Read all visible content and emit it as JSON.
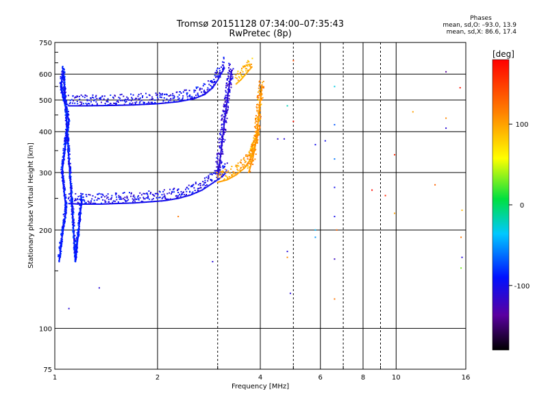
{
  "header": {
    "title": "Tromsø 20151128 07:34:00–07:35:43",
    "subtitle": "RwPretec (8p)"
  },
  "phases": {
    "title": "Phases",
    "line_o": "mean, sd,O: –93.0, 13.9",
    "line_x": "mean, sd,X:  86.6, 17.4"
  },
  "chart_data": {
    "type": "scatter",
    "xlabel": "Frequency [MHz]",
    "ylabel": "Stationary phase Virtual Height [km]",
    "xscale": "log",
    "yscale": "log",
    "xlim": [
      1,
      16
    ],
    "ylim": [
      75,
      750
    ],
    "x_ticks": [
      1,
      2,
      4,
      6,
      8,
      10,
      16
    ],
    "y_ticks": [
      75,
      100,
      200,
      300,
      400,
      500,
      600,
      750
    ],
    "x_minor_ticks": [
      3,
      5,
      7,
      9
    ],
    "y_minor_ticks": [
      150,
      250,
      350,
      450,
      550,
      650,
      700
    ],
    "colorbar": {
      "label": "[deg]",
      "range": [
        -180,
        180
      ],
      "ticks": [
        100,
        0,
        -100
      ]
    },
    "traces": {
      "o_f1_layer": {
        "phase": -100,
        "points": [
          [
            1.1,
            241
          ],
          [
            1.2,
            240
          ],
          [
            1.35,
            240
          ],
          [
            1.5,
            241
          ],
          [
            1.7,
            242
          ],
          [
            1.9,
            244
          ],
          [
            2.1,
            246
          ],
          [
            2.3,
            250
          ],
          [
            2.5,
            256
          ],
          [
            2.7,
            265
          ],
          [
            2.85,
            275
          ],
          [
            3.0,
            285
          ],
          [
            3.1,
            292
          ],
          [
            3.2,
            303
          ]
        ]
      },
      "o_f2_layer": {
        "phase": -100,
        "points": [
          [
            1.1,
            480
          ],
          [
            1.25,
            480
          ],
          [
            1.45,
            481
          ],
          [
            1.7,
            483
          ],
          [
            2.0,
            487
          ],
          [
            2.3,
            494
          ],
          [
            2.55,
            504
          ],
          [
            2.75,
            520
          ],
          [
            2.9,
            545
          ],
          [
            3.0,
            575
          ],
          [
            3.08,
            605
          ],
          [
            3.15,
            630
          ]
        ]
      },
      "o_f2_cusp": {
        "phase": -110,
        "points": [
          [
            3.0,
            290
          ],
          [
            3.05,
            330
          ],
          [
            3.1,
            380
          ],
          [
            3.15,
            440
          ],
          [
            3.2,
            500
          ],
          [
            3.25,
            560
          ],
          [
            3.3,
            620
          ]
        ]
      },
      "x_f1_layer": {
        "phase": 100,
        "points": [
          [
            3.0,
            280
          ],
          [
            3.2,
            285
          ],
          [
            3.4,
            295
          ],
          [
            3.6,
            310
          ],
          [
            3.75,
            330
          ],
          [
            3.85,
            360
          ],
          [
            3.95,
            400
          ]
        ]
      },
      "x_f2_layer": {
        "phase": 95,
        "points": [
          [
            3.4,
            560
          ],
          [
            3.5,
            575
          ],
          [
            3.6,
            595
          ],
          [
            3.7,
            615
          ],
          [
            3.8,
            635
          ]
        ]
      },
      "x_f2_cusp": {
        "phase": 105,
        "points": [
          [
            3.7,
            300
          ],
          [
            3.8,
            330
          ],
          [
            3.9,
            380
          ],
          [
            3.95,
            440
          ],
          [
            4.0,
            500
          ],
          [
            4.05,
            560
          ]
        ]
      },
      "low_freq_echoes": {
        "phase": -90,
        "points": [
          [
            1.03,
            160
          ],
          [
            1.05,
            190
          ],
          [
            1.08,
            230
          ],
          [
            1.05,
            300
          ],
          [
            1.08,
            380
          ],
          [
            1.1,
            430
          ],
          [
            1.04,
            550
          ],
          [
            1.06,
            610
          ],
          [
            1.15,
            160
          ],
          [
            1.2,
            250
          ]
        ]
      },
      "scattered": [
        {
          "f": 5.0,
          "h": 430,
          "phase": 170
        },
        {
          "f": 6.6,
          "h": 550,
          "phase": -30
        },
        {
          "f": 6.6,
          "h": 420,
          "phase": -70
        },
        {
          "f": 6.6,
          "h": 330,
          "phase": -60
        },
        {
          "f": 6.6,
          "h": 270,
          "phase": -100
        },
        {
          "f": 6.6,
          "h": 220,
          "phase": -100
        },
        {
          "f": 6.7,
          "h": 200,
          "phase": 130
        },
        {
          "f": 6.6,
          "h": 163,
          "phase": -120
        },
        {
          "f": 6.6,
          "h": 123,
          "phase": 120
        },
        {
          "f": 8.5,
          "h": 265,
          "phase": 175
        },
        {
          "f": 9.3,
          "h": 255,
          "phase": 160
        },
        {
          "f": 9.9,
          "h": 340,
          "phase": 160
        },
        {
          "f": 9.9,
          "h": 225,
          "phase": 100
        },
        {
          "f": 11.2,
          "h": 460,
          "phase": 100
        },
        {
          "f": 13.0,
          "h": 275,
          "phase": 130
        },
        {
          "f": 14.0,
          "h": 610,
          "phase": -140
        },
        {
          "f": 14.0,
          "h": 440,
          "phase": 110
        },
        {
          "f": 14.0,
          "h": 410,
          "phase": -110
        },
        {
          "f": 15.4,
          "h": 545,
          "phase": 170
        },
        {
          "f": 15.5,
          "h": 190,
          "phase": 120
        },
        {
          "f": 15.6,
          "h": 165,
          "phase": -110
        },
        {
          "f": 15.5,
          "h": 153,
          "phase": 30
        },
        {
          "f": 15.6,
          "h": 230,
          "phase": 90
        },
        {
          "f": 4.8,
          "h": 172,
          "phase": -110
        },
        {
          "f": 4.8,
          "h": 165,
          "phase": 110
        },
        {
          "f": 4.9,
          "h": 128,
          "phase": -110
        },
        {
          "f": 5.8,
          "h": 365,
          "phase": -100
        },
        {
          "f": 5.8,
          "h": 200,
          "phase": -40
        },
        {
          "f": 5.8,
          "h": 190,
          "phase": -50
        },
        {
          "f": 6.2,
          "h": 375,
          "phase": -100
        },
        {
          "f": 2.9,
          "h": 160,
          "phase": -110
        },
        {
          "f": 1.35,
          "h": 133,
          "phase": -110
        },
        {
          "f": 1.1,
          "h": 115,
          "phase": -110
        },
        {
          "f": 2.3,
          "h": 220,
          "phase": 120
        },
        {
          "f": 4.5,
          "h": 380,
          "phase": -110
        },
        {
          "f": 4.7,
          "h": 380,
          "phase": -110
        },
        {
          "f": 5.0,
          "h": 660,
          "phase": 140
        },
        {
          "f": 4.8,
          "h": 480,
          "phase": -20
        }
      ]
    }
  }
}
